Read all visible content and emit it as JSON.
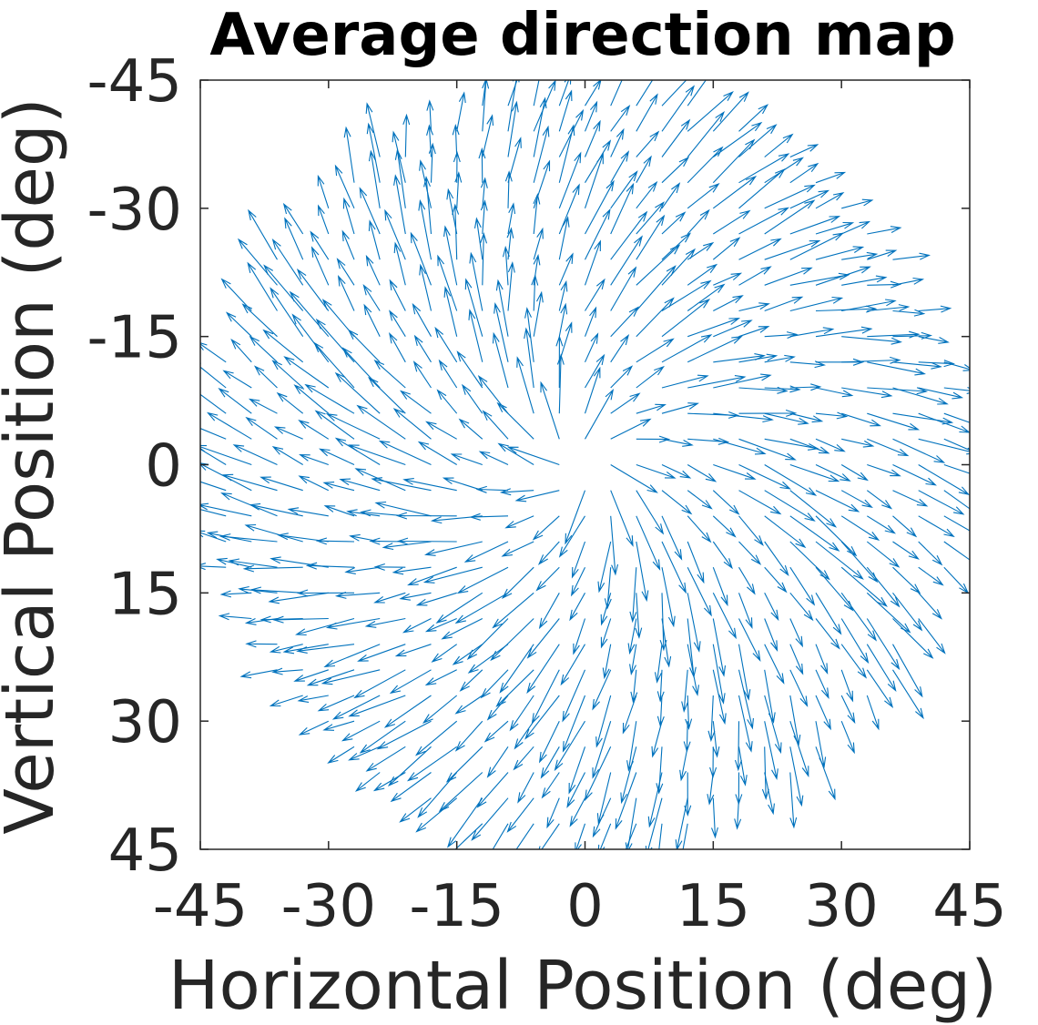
{
  "chart_data": {
    "type": "quiver",
    "title": "Average direction map",
    "xlabel": "Horizontal Position (deg)",
    "ylabel": "Vertical Position (deg)",
    "xlim": [
      -45,
      45
    ],
    "ylim": [
      -45,
      45
    ],
    "y_axis_direction": "reversed",
    "x_ticks": [
      "-45",
      "-30",
      "-15",
      "0",
      "15",
      "30",
      "45"
    ],
    "y_ticks": [
      "-45",
      "-30",
      "-15",
      "0",
      "15",
      "30",
      "45"
    ],
    "x_tick_values": [
      -45,
      -30,
      -15,
      0,
      15,
      30,
      45
    ],
    "y_tick_values": [
      -45,
      -30,
      -15,
      0,
      15,
      30,
      45
    ],
    "grid": false,
    "box": true,
    "series_color": "#0072BD",
    "field": {
      "description_of_pattern": "radial outward flow with clockwise swirl",
      "x_start": -45,
      "x_step": 3,
      "y_start": -45,
      "y_step": 3,
      "max_radius": 44,
      "min_radius": 3,
      "radial_angle_offset_deg": 25,
      "arrow_length_deg": 7
    }
  }
}
